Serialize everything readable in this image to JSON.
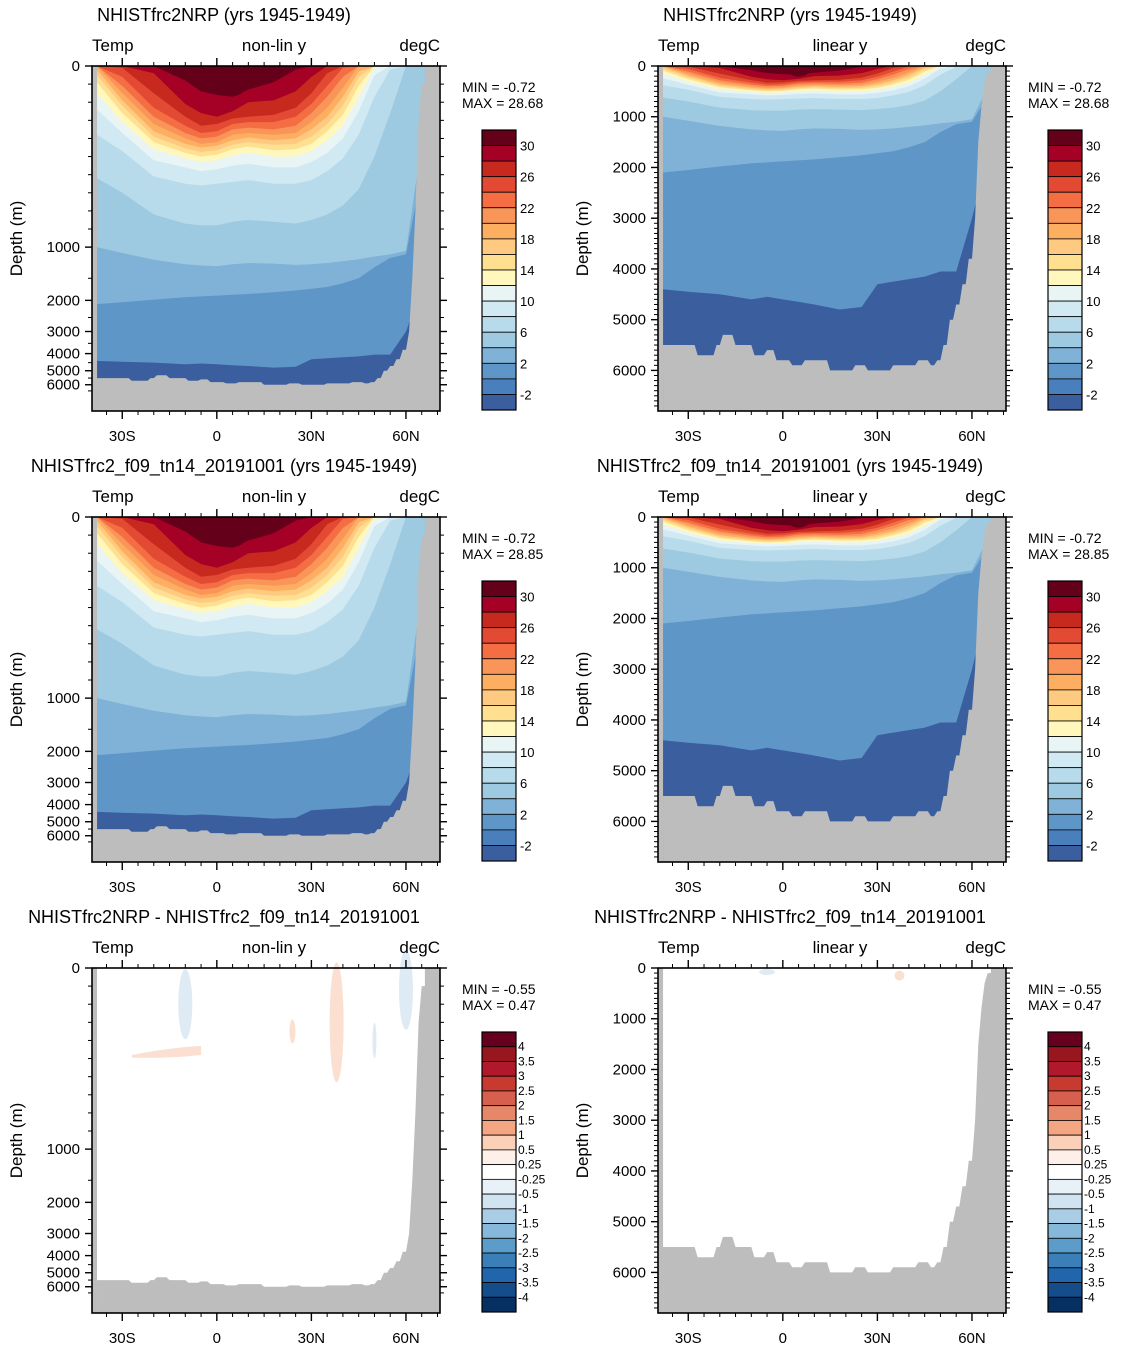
{
  "chart_data": [
    {
      "type": "heatmap",
      "title": "NHISTfrc2NRP (yrs 1945-1949)",
      "left_label": "Temp",
      "center_label": "non-lin y",
      "right_label": "degC",
      "ylabel": "Depth (m)",
      "x_ticks": [
        "30S",
        "0",
        "30N",
        "60N"
      ],
      "y_ticks": [
        "0",
        "1000",
        "2000",
        "3000",
        "4000",
        "5000",
        "6000"
      ],
      "y_scale": "non-linear",
      "ylim": [
        0,
        6500
      ],
      "xlim": [
        -40,
        70
      ],
      "min_text": "MIN =  -0.72",
      "max_text": "MAX =  28.68",
      "colorbar_labels": [
        "30",
        "26",
        "22",
        "18",
        "14",
        "10",
        "6",
        "2",
        "-2"
      ],
      "colorbar": "temperature"
    },
    {
      "type": "heatmap",
      "title": "NHISTfrc2NRP (yrs 1945-1949)",
      "left_label": "Temp",
      "center_label": "linear y",
      "right_label": "degC",
      "ylabel": "Depth (m)",
      "x_ticks": [
        "30S",
        "0",
        "30N",
        "60N"
      ],
      "y_ticks": [
        "0",
        "1000",
        "2000",
        "3000",
        "4000",
        "5000",
        "6000"
      ],
      "y_scale": "linear",
      "ylim": [
        0,
        6500
      ],
      "xlim": [
        -40,
        70
      ],
      "min_text": "MIN =  -0.72",
      "max_text": "MAX =  28.68",
      "colorbar_labels": [
        "30",
        "26",
        "22",
        "18",
        "14",
        "10",
        "6",
        "2",
        "-2"
      ],
      "colorbar": "temperature"
    },
    {
      "type": "heatmap",
      "title": "NHISTfrc2_f09_tn14_20191001 (yrs 1945-1949)",
      "left_label": "Temp",
      "center_label": "non-lin y",
      "right_label": "degC",
      "ylabel": "Depth (m)",
      "x_ticks": [
        "30S",
        "0",
        "30N",
        "60N"
      ],
      "y_ticks": [
        "0",
        "1000",
        "2000",
        "3000",
        "4000",
        "5000",
        "6000"
      ],
      "y_scale": "non-linear",
      "ylim": [
        0,
        6500
      ],
      "xlim": [
        -40,
        70
      ],
      "min_text": "MIN =  -0.72",
      "max_text": "MAX =  28.85",
      "colorbar_labels": [
        "30",
        "26",
        "22",
        "18",
        "14",
        "10",
        "6",
        "2",
        "-2"
      ],
      "colorbar": "temperature"
    },
    {
      "type": "heatmap",
      "title": "NHISTfrc2_f09_tn14_20191001 (yrs 1945-1949)",
      "left_label": "Temp",
      "center_label": "linear y",
      "right_label": "degC",
      "ylabel": "Depth (m)",
      "x_ticks": [
        "30S",
        "0",
        "30N",
        "60N"
      ],
      "y_ticks": [
        "0",
        "1000",
        "2000",
        "3000",
        "4000",
        "5000",
        "6000"
      ],
      "y_scale": "linear",
      "ylim": [
        0,
        6500
      ],
      "xlim": [
        -40,
        70
      ],
      "min_text": "MIN =  -0.72",
      "max_text": "MAX =  28.85",
      "colorbar_labels": [
        "30",
        "26",
        "22",
        "18",
        "14",
        "10",
        "6",
        "2",
        "-2"
      ],
      "colorbar": "temperature"
    },
    {
      "type": "heatmap",
      "title": "NHISTfrc2NRP - NHISTfrc2_f09_tn14_20191001",
      "left_label": "Temp",
      "center_label": "non-lin y",
      "right_label": "degC",
      "ylabel": "Depth (m)",
      "x_ticks": [
        "30S",
        "0",
        "30N",
        "60N"
      ],
      "y_ticks": [
        "0",
        "1000",
        "2000",
        "3000",
        "4000",
        "5000",
        "6000"
      ],
      "y_scale": "non-linear",
      "ylim": [
        0,
        6500
      ],
      "xlim": [
        -40,
        70
      ],
      "min_text": "MIN =  -0.55",
      "max_text": "MAX =  0.47",
      "colorbar_labels": [
        "4",
        "3.5",
        "3",
        "2.5",
        "2",
        "1.5",
        "1",
        "0.5",
        "0.25",
        "-0.25",
        "-0.5",
        "-1",
        "-1.5",
        "-2",
        "-2.5",
        "-3",
        "-3.5",
        "-4"
      ],
      "colorbar": "difference"
    },
    {
      "type": "heatmap",
      "title": "NHISTfrc2NRP - NHISTfrc2_f09_tn14_20191001",
      "left_label": "Temp",
      "center_label": "linear y",
      "right_label": "degC",
      "ylabel": "Depth (m)",
      "x_ticks": [
        "30S",
        "0",
        "30N",
        "60N"
      ],
      "y_ticks": [
        "0",
        "1000",
        "2000",
        "3000",
        "4000",
        "5000",
        "6000"
      ],
      "y_scale": "linear",
      "ylim": [
        0,
        6500
      ],
      "xlim": [
        -40,
        70
      ],
      "min_text": "MIN =  -0.55",
      "max_text": "MAX =  0.47",
      "colorbar_labels": [
        "4",
        "3.5",
        "3",
        "2.5",
        "2",
        "1.5",
        "1",
        "0.5",
        "0.25",
        "-0.25",
        "-0.5",
        "-1",
        "-1.5",
        "-2",
        "-2.5",
        "-3",
        "-3.5",
        "-4"
      ],
      "colorbar": "difference"
    }
  ],
  "colors": {
    "land": "#bdbdbd",
    "temperature_scale": [
      "#640019",
      "#a50026",
      "#c8291f",
      "#e34a33",
      "#f46d43",
      "#f99558",
      "#fdae61",
      "#fec980",
      "#fee090",
      "#fff7bc",
      "#e9f5f5",
      "#d1e9f2",
      "#b7dbeb",
      "#9ecae1",
      "#7fb2d6",
      "#5f96c8",
      "#4a7fbd",
      "#3b5f9e",
      "#2d2963"
    ],
    "difference_scale": [
      "#67001f",
      "#98161e",
      "#b2182b",
      "#c8392f",
      "#d6604d",
      "#e6876a",
      "#f4a582",
      "#fbd0b9",
      "#fdf0e8",
      "#ffffff",
      "#e8f1f8",
      "#cfe3f0",
      "#a8cde4",
      "#86b9d9",
      "#5b9cca",
      "#3b7fb9",
      "#2166ac",
      "#154c8a",
      "#053061"
    ],
    "diff_positive_patch": "#fbe0d2",
    "diff_negative_patch": "#deebf5"
  }
}
